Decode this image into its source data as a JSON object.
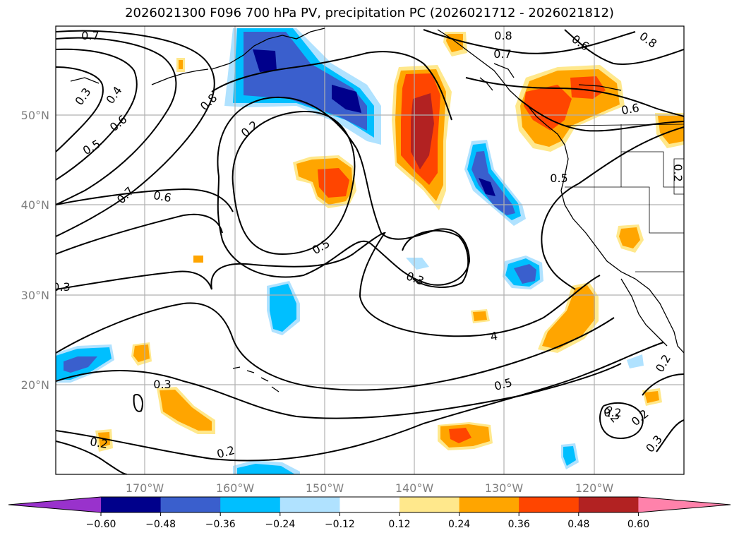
{
  "title": "2026021300 F096 700 hPa PV, precipitation PC (2026021712 - 2026021812)",
  "map": {
    "lat_labels": [
      "50°N",
      "40°N",
      "30°N",
      "20°N"
    ],
    "lon_labels": [
      "170°W",
      "160°W",
      "150°W",
      "140°W",
      "130°W",
      "120°W"
    ],
    "contour_labels": [
      "0.7",
      "0.8",
      "0.6",
      "0.3",
      "0.4",
      "0.6",
      "0.5",
      "0.7",
      "0.6",
      "0.8",
      "0.2",
      "0.8",
      "0.7",
      "0.6",
      "0.5",
      "0.3",
      "0.3",
      "4",
      "0.5",
      "0.3",
      "0.2",
      "0.2",
      "0.2",
      "0.2",
      "0.2",
      "0.3",
      "0.2",
      "0.2",
      "0.5"
    ],
    "features": [
      "coastlines",
      "state borders",
      "graticule"
    ]
  },
  "colorbar": {
    "ticks": [
      "−0.60",
      "−0.48",
      "−0.36",
      "−0.24",
      "−0.12",
      "0.12",
      "0.24",
      "0.36",
      "0.48",
      "0.60"
    ],
    "colors": [
      "#9932cc",
      "#00008b",
      "#3a5fcd",
      "#00bfff",
      "#b0e2ff",
      "#ffffff",
      "#ffe88c",
      "#ffa500",
      "#ff4500",
      "#b22222",
      "#ff82ab"
    ]
  },
  "palette": {
    "dark_blue": "#00008b",
    "mid_blue": "#3a5fcd",
    "cyan": "#00bfff",
    "light_blue": "#b0e2ff",
    "yellow": "#ffe88c",
    "orange": "#ffa500",
    "red_orange": "#ff4500",
    "brick": "#b22222",
    "grid": "#b0b0b0",
    "contour": "#000000"
  }
}
